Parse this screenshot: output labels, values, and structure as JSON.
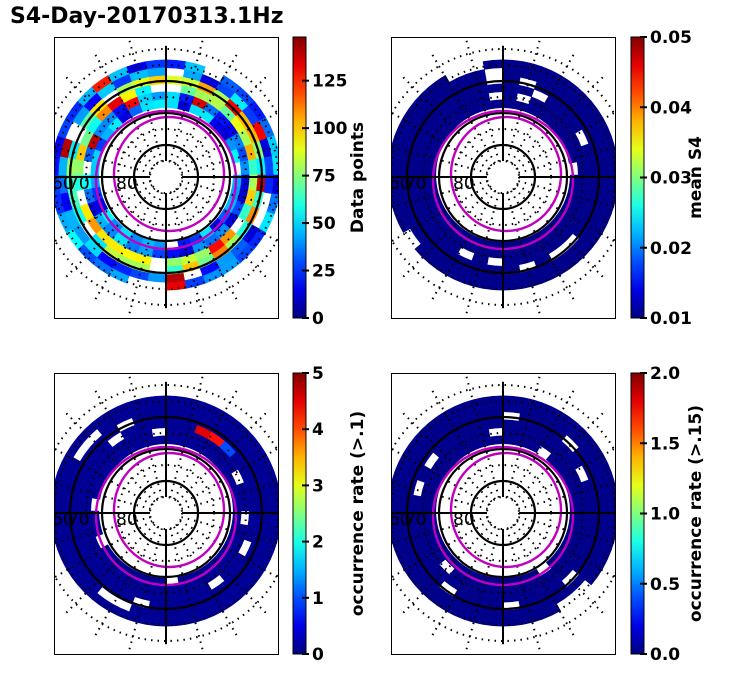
{
  "figure": {
    "title": "S4-Day-20170313.1Hz"
  },
  "chart_data": [
    {
      "type": "heatmap",
      "subtype": "polar-magnetic-latitude-mlt",
      "panel": "top-left",
      "colorbar_label": "Data points",
      "colorbar_ticks": [
        "0",
        "25",
        "50",
        "75",
        "100",
        "125"
      ],
      "clim": [
        0,
        148
      ],
      "colormap": "jet",
      "latitude_labels": [
        "60",
        "70",
        "80"
      ],
      "pattern": "ring of bins between ~55 and ~70 degrees; mostly 10-60 counts, a middle band of 60-100, scattered peaks up to ~140"
    },
    {
      "type": "heatmap",
      "subtype": "polar-magnetic-latitude-mlt",
      "panel": "top-right",
      "colorbar_label": "mean S4",
      "colorbar_ticks": [
        "0.01",
        "0.02",
        "0.03",
        "0.04",
        "0.05"
      ],
      "clim": [
        0.01,
        0.05
      ],
      "colormap": "jet",
      "latitude_labels": [
        "60",
        "70",
        "80"
      ],
      "pattern": "ring of bins uniformly near 0.01"
    },
    {
      "type": "heatmap",
      "subtype": "polar-magnetic-latitude-mlt",
      "panel": "bottom-left",
      "colorbar_label": "occurrence rate (>.1)",
      "colorbar_ticks": [
        "0",
        "1",
        "2",
        "3",
        "4",
        "5"
      ],
      "clim": [
        0,
        5
      ],
      "colormap": "jet",
      "latitude_labels": [
        "60",
        "70",
        "80"
      ],
      "pattern": "ring of bins near 0; a few bins near 10-11 MLT in the upper right reaching ~1 to ~4.5"
    },
    {
      "type": "heatmap",
      "subtype": "polar-magnetic-latitude-mlt",
      "panel": "bottom-right",
      "colorbar_label": "occurrence rate (>.15)",
      "colorbar_ticks": [
        "0.0",
        "0.5",
        "1.0",
        "1.5",
        "2.0"
      ],
      "clim": [
        0,
        2
      ],
      "colormap": "jet",
      "latitude_labels": [
        "60",
        "70",
        "80"
      ],
      "pattern": "ring of bins uniformly 0"
    }
  ]
}
